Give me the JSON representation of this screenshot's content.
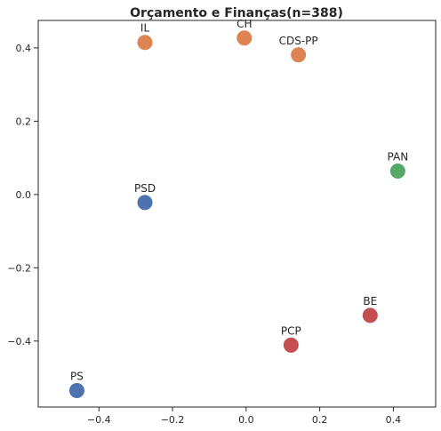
{
  "chart_data": {
    "type": "scatter",
    "title": "Orçamento e Finanças(n=388)",
    "xlabel": "",
    "ylabel": "",
    "xlim": [
      -0.565,
      0.515
    ],
    "ylim": [
      -0.58,
      0.475
    ],
    "x_ticks": [
      -0.4,
      -0.2,
      0.0,
      0.2,
      0.4
    ],
    "x_tick_labels": [
      "−0.4",
      "−0.2",
      "0.0",
      "0.2",
      "0.4"
    ],
    "y_ticks": [
      -0.4,
      -0.2,
      0.0,
      0.2,
      0.4
    ],
    "y_tick_labels": [
      "−0.4",
      "−0.2",
      "0.0",
      "0.2",
      "0.4"
    ],
    "grid": false,
    "colors": {
      "blue": "#4c72b0",
      "orange": "#dd8452",
      "green": "#55a868",
      "red": "#c44e52"
    },
    "points": [
      {
        "label": "IL",
        "x": -0.275,
        "y": 0.415,
        "color": "#dd8452"
      },
      {
        "label": "CH",
        "x": -0.005,
        "y": 0.427,
        "color": "#dd8452"
      },
      {
        "label": "CDS-PP",
        "x": 0.142,
        "y": 0.381,
        "color": "#dd8452"
      },
      {
        "label": "PAN",
        "x": 0.412,
        "y": 0.064,
        "color": "#55a868"
      },
      {
        "label": "PSD",
        "x": -0.275,
        "y": -0.022,
        "color": "#4c72b0"
      },
      {
        "label": "BE",
        "x": 0.337,
        "y": -0.33,
        "color": "#c44e52"
      },
      {
        "label": "PCP",
        "x": 0.122,
        "y": -0.411,
        "color": "#c44e52"
      },
      {
        "label": "PS",
        "x": -0.46,
        "y": -0.535,
        "color": "#4c72b0"
      }
    ]
  }
}
